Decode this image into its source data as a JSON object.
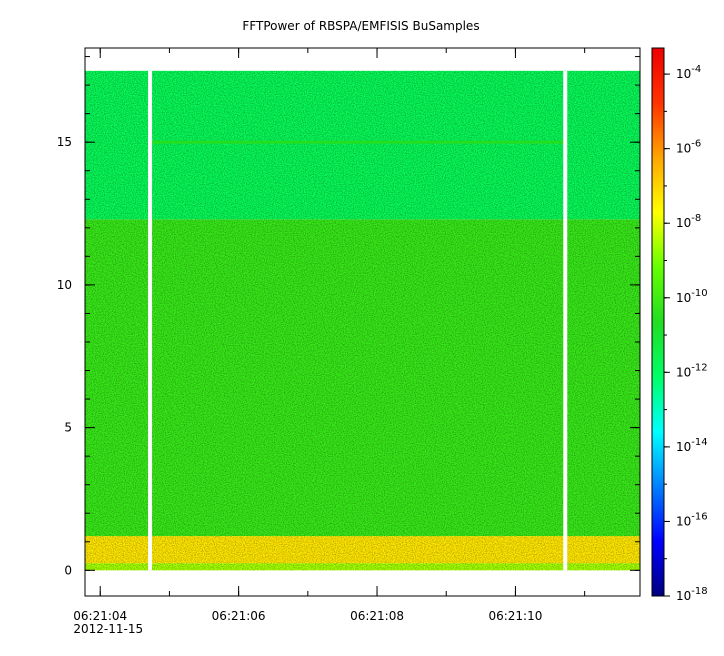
{
  "chart_data": {
    "type": "heatmap",
    "title": "FFTPower of RBSPA/EMFISIS  BuSamples",
    "x": {
      "ticks": [
        {
          "value": 4,
          "label": "06:21:04",
          "sublabel": "2012-11-15"
        },
        {
          "value": 6,
          "label": "06:21:06"
        },
        {
          "value": 8,
          "label": "06:21:08"
        },
        {
          "value": 10,
          "label": "06:21:10"
        }
      ],
      "minor_step": 1,
      "range": [
        3.78,
        11.8
      ]
    },
    "y": {
      "ticks": [
        0,
        5,
        10,
        15
      ],
      "minor_step": 1,
      "range": [
        -0.9,
        18.3
      ]
    },
    "colorbar": {
      "scale": "log",
      "exponent_range": [
        -18,
        -3.3
      ],
      "tick_exponents": [
        -4,
        -6,
        -8,
        -10,
        -12,
        -14,
        -16,
        -18
      ],
      "tick_base": "10",
      "colors": [
        "#00007f",
        "#0000ff",
        "#0080ff",
        "#00ffff",
        "#00ff66",
        "#22dd22",
        "#66ff00",
        "#ffff00",
        "#ffa500",
        "#ff3300",
        "#ee0000"
      ]
    },
    "data_extent": {
      "x": [
        3.78,
        11.8
      ],
      "y": [
        0.0,
        17.5
      ]
    },
    "gaps_at_x": [
      4.72,
      10.72
    ],
    "bands": [
      {
        "y_from": 0.0,
        "y_to": 0.25,
        "level": -8.6
      },
      {
        "y_from": 0.25,
        "y_to": 1.2,
        "level": -7.3
      },
      {
        "y_from": 1.2,
        "y_to": 12.3,
        "level": -10.2
      },
      {
        "y_from": 12.3,
        "y_to": 17.5,
        "level": -11.8
      }
    ],
    "line_feature": {
      "y": 15.0,
      "x_from": 4.72,
      "x_to": 10.72,
      "level": -10.6
    }
  }
}
